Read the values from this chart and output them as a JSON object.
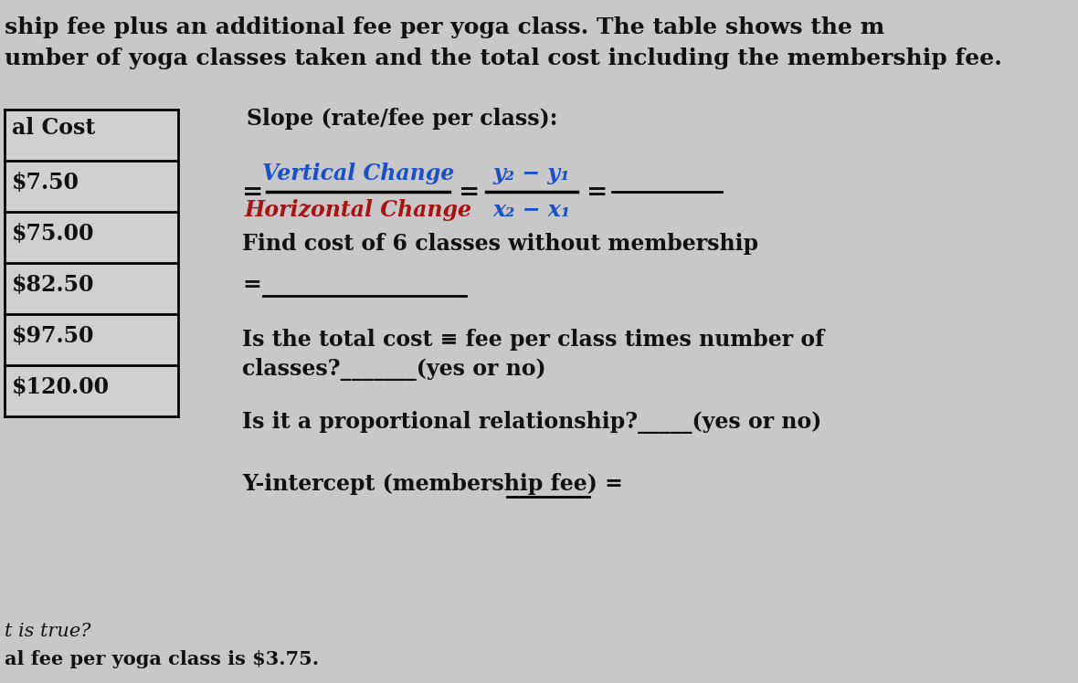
{
  "bg_color": "#c8c8c8",
  "title_line1": "ship fee plus an additional fee per yoga class. The table shows the m",
  "title_line2": "umber of yoga classes taken and the total cost including the membership fee.",
  "table_header": "al Cost",
  "table_values": [
    "$7.50",
    "$75.00",
    "$82.50",
    "$97.50",
    "$120.00"
  ],
  "slope_label": "Slope (rate/fee per class):",
  "slope_eq_blue_num": "Vertical Change",
  "slope_eq_red_den": "Horizontal Change",
  "slope_eq_frac2_num": "y₂ − y₁",
  "slope_eq_frac2_den": "x₂ − x₁",
  "find_cost_line": "Find cost of 6 classes without membership",
  "total_cost_q1": "Is the total cost ≡ fee per class times number of",
  "total_cost_q2": "classes?_______(yes or no)",
  "proportional_q": "Is it a proportional relationship?_____(yes or no)",
  "y_intercept_text": "Y-intercept (membership fee) =",
  "true_label": "t is true?",
  "fee_label": "al fee per yoga class is $3.75.",
  "text_color": "#111111",
  "blue_color": "#1a4fcc",
  "red_color": "#aa1111",
  "table_bg": "#c8c8c8",
  "line_color": "#222222"
}
